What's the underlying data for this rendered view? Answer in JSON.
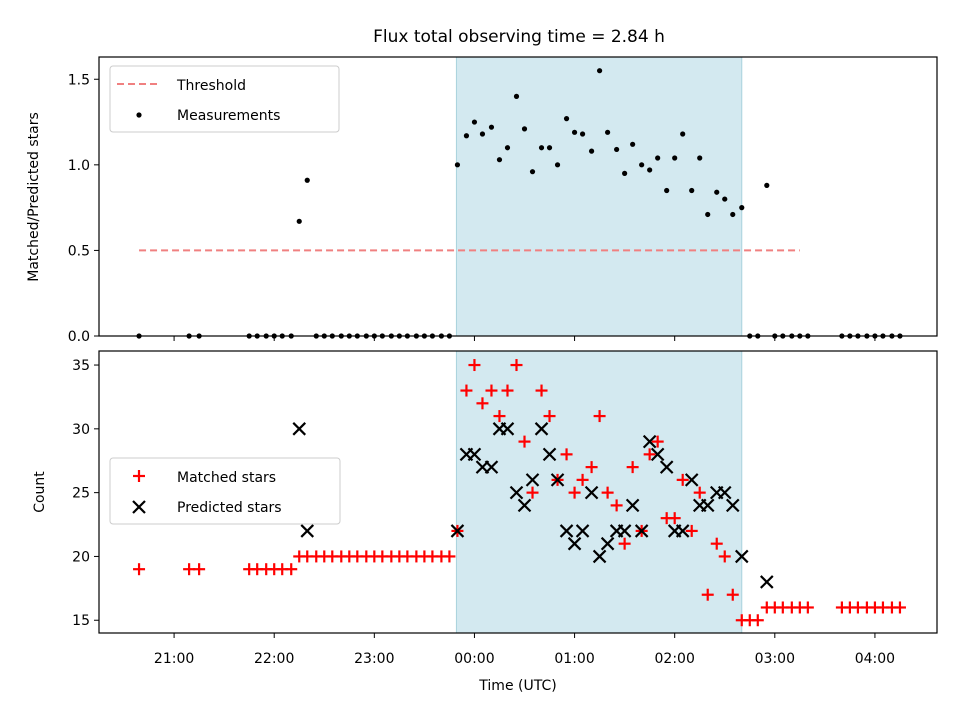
{
  "title": "Flux total observing time = 2.84 h",
  "chart_data": [
    {
      "type": "scatter",
      "ylabel": "Matched/Predicted stars",
      "xlabel": "",
      "x_units": "hours since 20:00 UTC",
      "xlim": [
        20.25,
        28.62
      ],
      "ylim": [
        0,
        1.63
      ],
      "yticks": [
        0.0,
        0.5,
        1.0,
        1.5
      ],
      "ytick_labels": [
        "0.0",
        "0.5",
        "1.0",
        "1.5"
      ],
      "shaded_span": [
        23.82,
        26.67
      ],
      "shaded_color": "#d3e9f0",
      "legend": [
        "Threshold",
        "Measurements"
      ],
      "legend_position": "upper left",
      "threshold": {
        "name": "Threshold",
        "y": 0.5,
        "x_range": [
          20.65,
          27.25
        ],
        "color": "#f08080"
      },
      "series": [
        {
          "name": "Measurements",
          "color": "#000000",
          "x": [
            20.65,
            21.15,
            21.25,
            21.75,
            21.83,
            21.92,
            22.0,
            22.08,
            22.17,
            22.25,
            22.33,
            22.42,
            22.5,
            22.58,
            22.67,
            22.75,
            22.83,
            22.92,
            23.0,
            23.08,
            23.17,
            23.25,
            23.33,
            23.42,
            23.5,
            23.58,
            23.67,
            23.75,
            23.83,
            23.92,
            24.0,
            24.08,
            24.17,
            24.25,
            24.33,
            24.42,
            24.5,
            24.58,
            24.67,
            24.75,
            24.83,
            24.92,
            25.0,
            25.08,
            25.17,
            25.25,
            25.33,
            25.42,
            25.5,
            25.58,
            25.67,
            25.75,
            25.83,
            25.92,
            26.0,
            26.08,
            26.17,
            26.25,
            26.33,
            26.42,
            26.5,
            26.58,
            26.67,
            26.75,
            26.83,
            26.92,
            27.0,
            27.08,
            27.17,
            27.25,
            27.33,
            27.67,
            27.75,
            27.83,
            27.92,
            28.0,
            28.08,
            28.17,
            28.25
          ],
          "y": [
            0,
            0,
            0,
            0,
            0,
            0,
            0,
            0,
            0,
            0.67,
            0.91,
            0,
            0,
            0,
            0,
            0,
            0,
            0,
            0,
            0,
            0,
            0,
            0,
            0,
            0,
            0,
            0,
            0,
            1.0,
            1.17,
            1.25,
            1.18,
            1.22,
            1.03,
            1.1,
            1.4,
            1.21,
            0.96,
            1.1,
            1.1,
            1.0,
            1.27,
            1.19,
            1.18,
            1.08,
            1.55,
            1.19,
            1.09,
            0.95,
            1.12,
            1.0,
            0.97,
            1.04,
            0.85,
            1.04,
            1.18,
            0.85,
            1.04,
            0.71,
            0.84,
            0.8,
            0.71,
            0.75,
            0,
            0,
            0.88,
            0,
            0,
            0,
            0,
            0,
            0,
            0,
            0,
            0,
            0,
            0,
            0,
            0
          ]
        }
      ]
    },
    {
      "type": "scatter",
      "ylabel": "Count",
      "xlabel": "Time (UTC)",
      "x_units": "hours since 20:00 UTC",
      "xlim": [
        20.25,
        28.62
      ],
      "ylim": [
        14,
        36.1
      ],
      "yticks": [
        15,
        20,
        25,
        30,
        35
      ],
      "ytick_labels": [
        "15",
        "20",
        "25",
        "30",
        "35"
      ],
      "xticks": [
        21,
        22,
        23,
        24,
        25,
        26,
        27,
        28
      ],
      "xtick_labels": [
        "21:00",
        "22:00",
        "23:00",
        "00:00",
        "01:00",
        "02:00",
        "03:00",
        "04:00"
      ],
      "shaded_span": [
        23.82,
        26.67
      ],
      "shaded_color": "#d3e9f0",
      "legend": [
        "Matched stars",
        "Predicted stars"
      ],
      "legend_position": "center left",
      "series": [
        {
          "name": "Matched stars",
          "marker": "+",
          "color": "#ff0000",
          "x": [
            20.65,
            21.15,
            21.25,
            21.75,
            21.83,
            21.92,
            22.0,
            22.08,
            22.17,
            22.25,
            22.33,
            22.42,
            22.5,
            22.58,
            22.67,
            22.75,
            22.83,
            22.92,
            23.0,
            23.08,
            23.17,
            23.25,
            23.33,
            23.42,
            23.5,
            23.58,
            23.67,
            23.75,
            23.83,
            23.92,
            24.0,
            24.08,
            24.17,
            24.25,
            24.33,
            24.42,
            24.5,
            24.58,
            24.67,
            24.75,
            24.83,
            24.92,
            25.0,
            25.08,
            25.17,
            25.25,
            25.33,
            25.42,
            25.5,
            25.58,
            25.67,
            25.75,
            25.83,
            25.92,
            26.0,
            26.08,
            26.17,
            26.25,
            26.33,
            26.42,
            26.5,
            26.58,
            26.67,
            26.75,
            26.83,
            26.92,
            27.0,
            27.08,
            27.17,
            27.25,
            27.33,
            27.67,
            27.75,
            27.83,
            27.92,
            28.0,
            28.08,
            28.17,
            28.25
          ],
          "y": [
            19,
            19,
            19,
            19,
            19,
            19,
            19,
            19,
            19,
            20,
            20,
            20,
            20,
            20,
            20,
            20,
            20,
            20,
            20,
            20,
            20,
            20,
            20,
            20,
            20,
            20,
            20,
            20,
            22,
            33,
            35,
            32,
            33,
            31,
            33,
            35,
            29,
            25,
            33,
            31,
            26,
            28,
            25,
            26,
            27,
            31,
            25,
            24,
            21,
            27,
            22,
            28,
            29,
            23,
            23,
            26,
            22,
            25,
            17,
            21,
            20,
            17,
            15,
            15,
            15,
            16,
            16,
            16,
            16,
            16,
            16,
            16,
            16,
            16,
            16,
            16,
            16,
            16,
            16
          ]
        },
        {
          "name": "Predicted stars",
          "marker": "x",
          "color": "#000000",
          "x": [
            22.25,
            22.33,
            23.83,
            23.92,
            24.0,
            24.08,
            24.17,
            24.25,
            24.33,
            24.42,
            24.5,
            24.58,
            24.67,
            24.75,
            24.83,
            24.92,
            25.0,
            25.08,
            25.17,
            25.25,
            25.33,
            25.42,
            25.5,
            25.58,
            25.67,
            25.75,
            25.83,
            25.92,
            26.0,
            26.08,
            26.17,
            26.25,
            26.33,
            26.42,
            26.5,
            26.58,
            26.67,
            26.92
          ],
          "y": [
            30,
            22,
            22,
            28,
            28,
            27,
            27,
            30,
            30,
            25,
            24,
            26,
            30,
            28,
            26,
            22,
            21,
            22,
            25,
            20,
            21,
            22,
            22,
            24,
            22,
            29,
            28,
            27,
            22,
            22,
            26,
            24,
            24,
            25,
            25,
            24,
            20,
            18
          ]
        }
      ]
    }
  ]
}
